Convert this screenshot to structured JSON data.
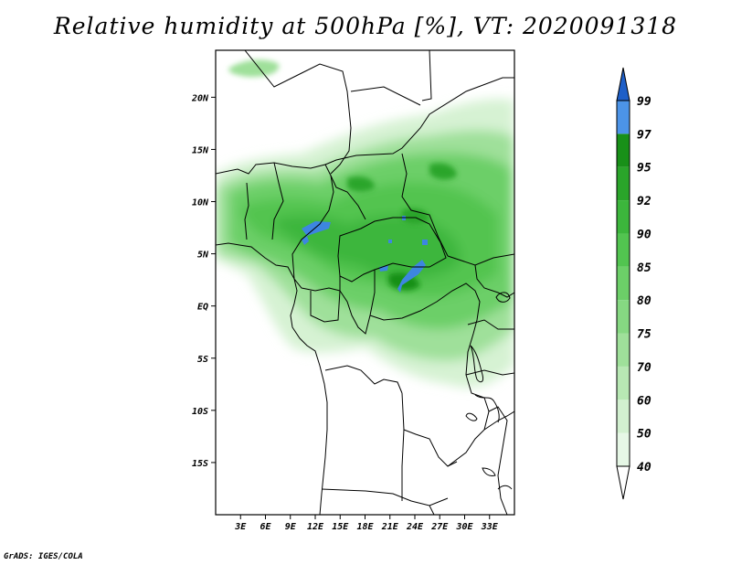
{
  "title": "Relative humidity at 500hPa [%], VT: 2020091318",
  "credit": "GrADS: IGES/COLA",
  "map": {
    "lon_range": [
      0,
      36
    ],
    "lat_range": [
      -20,
      24.5
    ],
    "lat_ticks": [
      {
        "value": 20,
        "label": "20N"
      },
      {
        "value": 15,
        "label": "15N"
      },
      {
        "value": 10,
        "label": "10N"
      },
      {
        "value": 5,
        "label": "5N"
      },
      {
        "value": 0,
        "label": "EQ"
      },
      {
        "value": -5,
        "label": "5S"
      },
      {
        "value": -10,
        "label": "10S"
      },
      {
        "value": -15,
        "label": "15S"
      }
    ],
    "lon_ticks": [
      {
        "value": 3,
        "label": "3E"
      },
      {
        "value": 6,
        "label": "6E"
      },
      {
        "value": 9,
        "label": "9E"
      },
      {
        "value": 12,
        "label": "12E"
      },
      {
        "value": 15,
        "label": "15E"
      },
      {
        "value": 18,
        "label": "18E"
      },
      {
        "value": 21,
        "label": "21E"
      },
      {
        "value": 24,
        "label": "24E"
      },
      {
        "value": 27,
        "label": "27E"
      },
      {
        "value": 30,
        "label": "30E"
      },
      {
        "value": 33,
        "label": "33E"
      }
    ]
  },
  "colorbar": {
    "levels": [
      {
        "label": "40",
        "color": "#e6f7e6"
      },
      {
        "label": "50",
        "color": "#d2f0d0"
      },
      {
        "label": "60",
        "color": "#b8e8b4"
      },
      {
        "label": "70",
        "color": "#9fe09a"
      },
      {
        "label": "75",
        "color": "#86d882"
      },
      {
        "label": "80",
        "color": "#6ccf68"
      },
      {
        "label": "85",
        "color": "#52c450"
      },
      {
        "label": "90",
        "color": "#3cb63c"
      },
      {
        "label": "92",
        "color": "#2aa52a"
      },
      {
        "label": "95",
        "color": "#189018"
      },
      {
        "label": "97",
        "color": "#4c94e8"
      },
      {
        "label": "99",
        "color": "#2a6fd8"
      }
    ],
    "top_color": "#1e5fc8",
    "bottom_color": "#ffffff"
  }
}
